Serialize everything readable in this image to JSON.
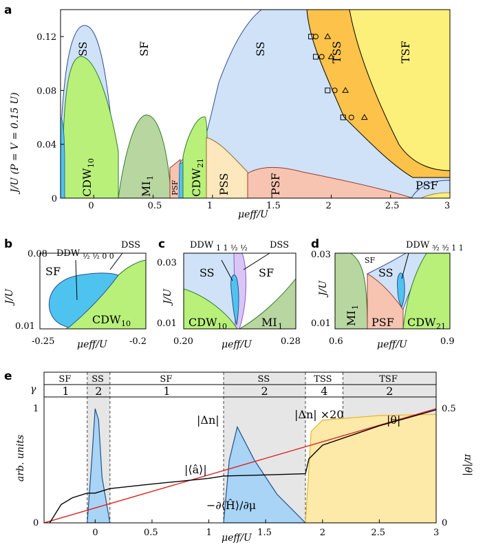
{
  "colors": {
    "SF": "#ffffff",
    "SS": "#cfe2f7",
    "CDW": "#b8f07a",
    "MI": "#b8d6a0",
    "PSF": "#f7c4b2",
    "PSS": "#fde7bc",
    "TSS": "#fcc24a",
    "TSF": "#fdf07a",
    "DDW": "#4fc3f0",
    "DSS": "#d9c6f5",
    "red_line": "#e02020",
    "grey_band": "#e6e6e6"
  },
  "panel_a": {
    "label": "a",
    "ylabel": "J/U (P = V = 0.15 U)",
    "xlabel": "μeff/U",
    "xticks": [
      "0",
      "0.5",
      "1",
      "1.5",
      "2",
      "2.5",
      "3"
    ],
    "yticks": [
      "0",
      "0.04",
      "0.08",
      "0.12"
    ],
    "phases": {
      "SS1": "SS",
      "SF": "SF",
      "SS2": "SS",
      "TSS": "TSS",
      "TSF": "TSF",
      "CDW10": "CDW",
      "CDW10_sub": "10",
      "MI1": "MI",
      "MI1_sub": "1",
      "PSF1": "PSF",
      "CDW21": "CDW",
      "CDW21_sub": "21",
      "PSS": "PSS",
      "PSF2": "PSF",
      "PSF3": "PSF"
    }
  },
  "panel_b": {
    "label": "b",
    "ylabel": "J/U",
    "xlabel": "μeff/U",
    "xticks": [
      "-0.25",
      "-0.2"
    ],
    "yticks": [
      "0.01",
      "0.08"
    ],
    "ddw": "DDW",
    "ddw_sub": "½ ½ 0 0",
    "dss": "DSS",
    "sf": "SF",
    "cdw": "CDW",
    "cdw_sub": "10"
  },
  "panel_c": {
    "label": "c",
    "ylabel": "J/U",
    "xlabel": "μeff/U",
    "xticks": [
      "0.20",
      "0.28"
    ],
    "yticks": [
      "0.01",
      "0.03"
    ],
    "ddw": "DDW",
    "ddw_sub": "1 1 ½ ½",
    "dss": "DSS",
    "ss": "SS",
    "sf": "SF",
    "cdw": "CDW",
    "cdw_sub": "10",
    "mi": "MI",
    "mi_sub": "1"
  },
  "panel_d": {
    "label": "d",
    "ylabel": "J/U",
    "xlabel": "μeff/U",
    "xticks": [
      "0.6",
      "0.9"
    ],
    "yticks": [
      "0.01",
      "0.03"
    ],
    "ddw": "DDW",
    "ddw_sub": "³⁄₂ ³⁄₂ 1 1",
    "sf": "SF",
    "ss": "SS",
    "psf": "PSF",
    "cdw": "CDW",
    "cdw_sub": "21",
    "mi": "MI",
    "mi_sub": "1"
  },
  "panel_e": {
    "label": "e",
    "ylabel_left": "arb. units",
    "ylabel_right": "π/|θ|",
    "xlabel": "μeff/U",
    "gamma_label": "γ",
    "xticks": [
      "0",
      "0.5",
      "1",
      "1.5",
      "2",
      "2.5",
      "3"
    ],
    "yticks_left": [
      "0",
      "1"
    ],
    "yticks_right": [
      "0",
      "0.5"
    ],
    "phase_row": [
      "SF",
      "SS",
      "SF",
      "SS",
      "TSS",
      "TSF"
    ],
    "gamma_row": [
      "1",
      "2",
      "1",
      "2",
      "4",
      "2"
    ],
    "curve_labels": {
      "dn": "|Δn|",
      "dn20": "|Δn| ×20",
      "theta": "|θ|",
      "a": "|⟨â⟩|",
      "dH": "−∂⟨Ĥ⟩/∂μ"
    }
  },
  "chart_data": [
    {
      "panel": "a",
      "type": "area",
      "xlabel": "μeff/U",
      "ylabel": "J/U (P = V = 0.15 U)",
      "xlim": [
        -0.28,
        3.0
      ],
      "ylim": [
        0,
        0.14
      ],
      "regions": [
        "SS",
        "SF",
        "SS",
        "TSS",
        "TSF",
        "CDW10",
        "MI1",
        "PSF",
        "CDW21",
        "PSS",
        "PSF",
        "PSF"
      ],
      "markers": {
        "square": [
          [
            1.83,
            0.12
          ],
          [
            1.87,
            0.105
          ],
          [
            1.97,
            0.08
          ],
          [
            2.1,
            0.06
          ]
        ],
        "circle": [
          [
            1.87,
            0.12
          ],
          [
            1.92,
            0.105
          ],
          [
            2.03,
            0.08
          ],
          [
            2.17,
            0.06
          ]
        ],
        "triangle": [
          [
            1.97,
            0.12
          ],
          [
            2.0,
            0.105
          ],
          [
            2.12,
            0.08
          ],
          [
            2.28,
            0.06
          ]
        ]
      }
    },
    {
      "panel": "e",
      "type": "line",
      "xlabel": "μeff/U",
      "ylabel": "arb. units",
      "xlim": [
        -0.45,
        3.0
      ],
      "ylim": [
        0,
        1.05
      ],
      "phase_boundaries": [
        -0.07,
        0.13,
        1.13,
        1.85,
        2.18
      ],
      "series": [
        {
          "name": "|⟨â⟩|",
          "x": [
            -0.4,
            -0.3,
            -0.2,
            -0.07,
            0.0,
            0.13,
            0.5,
            1.0,
            1.13,
            1.5,
            1.85,
            1.88,
            2.0,
            2.5,
            3.0
          ],
          "y": [
            0.0,
            0.16,
            0.22,
            0.26,
            0.26,
            0.3,
            0.34,
            0.39,
            0.41,
            0.42,
            0.43,
            0.56,
            0.68,
            0.85,
            0.99
          ]
        },
        {
          "name": "−∂⟨Ĥ⟩/∂μ",
          "x": [
            -0.45,
            3.0
          ],
          "y": [
            0.0,
            1.0
          ]
        },
        {
          "name": "|Δn|",
          "x": [
            -0.07,
            -0.03,
            0.0,
            0.03,
            0.06,
            0.13
          ],
          "y": [
            0.0,
            0.55,
            1.0,
            0.9,
            0.4,
            0.0
          ]
        },
        {
          "name": "|Δn| ×20",
          "x": [
            1.13,
            1.18,
            1.25,
            1.4,
            1.6,
            1.85
          ],
          "y": [
            0.0,
            0.55,
            0.84,
            0.55,
            0.25,
            0.0
          ]
        },
        {
          "name": "|θ|",
          "x": [
            1.85,
            1.9,
            2.0,
            2.5,
            3.0
          ],
          "y": [
            0.0,
            0.8,
            0.9,
            0.94,
            0.95
          ]
        }
      ]
    }
  ]
}
